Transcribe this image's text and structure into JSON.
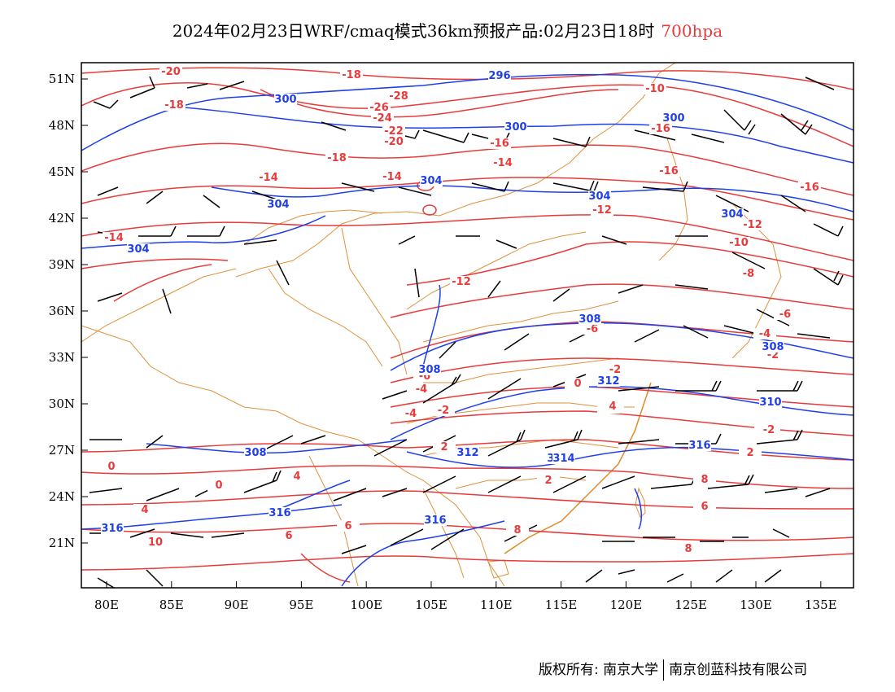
{
  "title": {
    "main": "2024年02月23日WRF/cmaq模式36km预报产品:02月23日18时",
    "level": "700hpa"
  },
  "footer": {
    "left": "版权所有: 南京大学",
    "right": "南京创蓝科技有限公司"
  },
  "axes": {
    "lon_ticks": [
      "80E",
      "85E",
      "90E",
      "95E",
      "100E",
      "105E",
      "110E",
      "115E",
      "120E",
      "125E",
      "130E",
      "135E"
    ],
    "lat_ticks": [
      "51N",
      "48N",
      "45N",
      "42N",
      "39N",
      "36N",
      "33N",
      "30N",
      "27N",
      "24N",
      "21N"
    ]
  },
  "colors": {
    "temperature": "#e83a3a",
    "height": "#1f3fe8",
    "border": "#e0913a",
    "wind": "#000000"
  },
  "temp_labels": [
    "-20",
    "-18",
    "-10",
    "-28",
    "-26",
    "-24",
    "-22",
    "-20",
    "-18",
    "-16",
    "-16",
    "-14",
    "-14",
    "-18",
    "-16",
    "-16",
    "-14",
    "-12",
    "-12",
    "-10",
    "-14",
    "-12",
    "-8",
    "-6",
    "-4",
    "-2",
    "-6",
    "-6",
    "-4",
    "-2",
    "-0",
    "-2",
    "-4",
    "0",
    "-2",
    "0",
    "2",
    "2",
    "0",
    "4",
    "4",
    "6",
    "6",
    "8",
    "8",
    "6",
    "8",
    "10",
    "2",
    "0",
    "4",
    "-2"
  ],
  "height_labels": [
    "296",
    "300",
    "300",
    "300",
    "304",
    "304",
    "304",
    "304",
    "304",
    "308",
    "308",
    "308",
    "308",
    "310",
    "312",
    "312",
    "312",
    "316",
    "314",
    "316",
    "316",
    "316"
  ],
  "legend": {}
}
